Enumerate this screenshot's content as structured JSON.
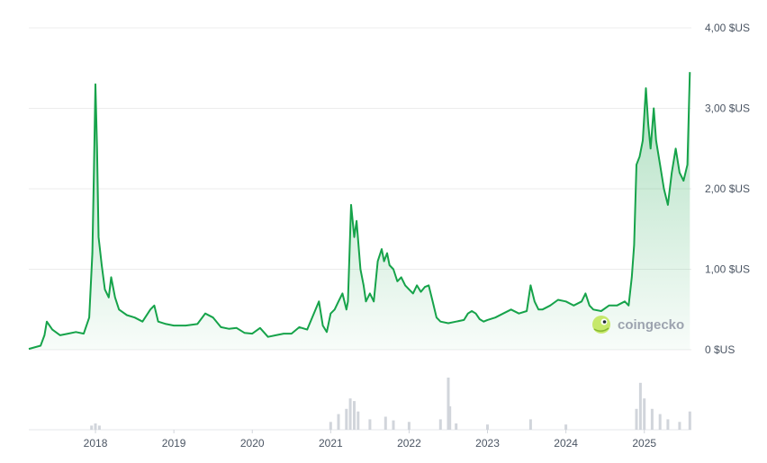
{
  "chart_data": {
    "type": "area",
    "ylim": [
      0,
      4
    ],
    "y_ticks": [
      {
        "value": 0,
        "label": "0 $US"
      },
      {
        "value": 1,
        "label": "1,00 $US"
      },
      {
        "value": 2,
        "label": "2,00 $US"
      },
      {
        "value": 3,
        "label": "3,00 $US"
      },
      {
        "value": 4,
        "label": "4,00 $US"
      }
    ],
    "x_ticks": [
      "2018",
      "2019",
      "2020",
      "2021",
      "2022",
      "2023",
      "2024",
      "2025"
    ],
    "x_range": [
      2017.15,
      2025.6
    ],
    "grid": true,
    "line_color": "#16a34a",
    "fill_color": "#16a34a",
    "volume_color": "#d1d5db",
    "series": [
      {
        "points": [
          [
            2017.15,
            0.01
          ],
          [
            2017.3,
            0.05
          ],
          [
            2017.35,
            0.18
          ],
          [
            2017.38,
            0.35
          ],
          [
            2017.45,
            0.25
          ],
          [
            2017.55,
            0.18
          ],
          [
            2017.65,
            0.2
          ],
          [
            2017.75,
            0.22
          ],
          [
            2017.85,
            0.2
          ],
          [
            2017.92,
            0.4
          ],
          [
            2017.96,
            1.2
          ],
          [
            2017.98,
            2.2
          ],
          [
            2018.0,
            3.3
          ],
          [
            2018.02,
            2.5
          ],
          [
            2018.04,
            1.4
          ],
          [
            2018.08,
            1.05
          ],
          [
            2018.12,
            0.75
          ],
          [
            2018.17,
            0.65
          ],
          [
            2018.2,
            0.9
          ],
          [
            2018.25,
            0.65
          ],
          [
            2018.3,
            0.5
          ],
          [
            2018.4,
            0.43
          ],
          [
            2018.5,
            0.4
          ],
          [
            2018.6,
            0.35
          ],
          [
            2018.7,
            0.5
          ],
          [
            2018.75,
            0.55
          ],
          [
            2018.8,
            0.35
          ],
          [
            2018.9,
            0.32
          ],
          [
            2019.0,
            0.3
          ],
          [
            2019.15,
            0.3
          ],
          [
            2019.3,
            0.32
          ],
          [
            2019.4,
            0.45
          ],
          [
            2019.5,
            0.4
          ],
          [
            2019.6,
            0.28
          ],
          [
            2019.7,
            0.26
          ],
          [
            2019.8,
            0.27
          ],
          [
            2019.9,
            0.21
          ],
          [
            2020.0,
            0.2
          ],
          [
            2020.1,
            0.27
          ],
          [
            2020.2,
            0.16
          ],
          [
            2020.3,
            0.18
          ],
          [
            2020.4,
            0.2
          ],
          [
            2020.5,
            0.2
          ],
          [
            2020.6,
            0.28
          ],
          [
            2020.7,
            0.25
          ],
          [
            2020.85,
            0.6
          ],
          [
            2020.9,
            0.3
          ],
          [
            2020.95,
            0.22
          ],
          [
            2021.0,
            0.45
          ],
          [
            2021.05,
            0.5
          ],
          [
            2021.1,
            0.6
          ],
          [
            2021.15,
            0.7
          ],
          [
            2021.2,
            0.5
          ],
          [
            2021.22,
            0.6
          ],
          [
            2021.26,
            1.8
          ],
          [
            2021.3,
            1.4
          ],
          [
            2021.33,
            1.6
          ],
          [
            2021.38,
            1.0
          ],
          [
            2021.42,
            0.8
          ],
          [
            2021.45,
            0.6
          ],
          [
            2021.5,
            0.7
          ],
          [
            2021.55,
            0.6
          ],
          [
            2021.6,
            1.1
          ],
          [
            2021.65,
            1.25
          ],
          [
            2021.68,
            1.1
          ],
          [
            2021.72,
            1.2
          ],
          [
            2021.75,
            1.05
          ],
          [
            2021.8,
            1.0
          ],
          [
            2021.85,
            0.85
          ],
          [
            2021.9,
            0.9
          ],
          [
            2021.95,
            0.8
          ],
          [
            2022.0,
            0.75
          ],
          [
            2022.05,
            0.7
          ],
          [
            2022.1,
            0.8
          ],
          [
            2022.15,
            0.72
          ],
          [
            2022.2,
            0.78
          ],
          [
            2022.25,
            0.8
          ],
          [
            2022.3,
            0.6
          ],
          [
            2022.35,
            0.4
          ],
          [
            2022.4,
            0.35
          ],
          [
            2022.5,
            0.33
          ],
          [
            2022.6,
            0.35
          ],
          [
            2022.7,
            0.37
          ],
          [
            2022.75,
            0.45
          ],
          [
            2022.8,
            0.48
          ],
          [
            2022.85,
            0.45
          ],
          [
            2022.9,
            0.38
          ],
          [
            2022.95,
            0.35
          ],
          [
            2023.0,
            0.37
          ],
          [
            2023.1,
            0.4
          ],
          [
            2023.2,
            0.45
          ],
          [
            2023.3,
            0.5
          ],
          [
            2023.4,
            0.45
          ],
          [
            2023.5,
            0.48
          ],
          [
            2023.55,
            0.8
          ],
          [
            2023.6,
            0.6
          ],
          [
            2023.65,
            0.5
          ],
          [
            2023.7,
            0.5
          ],
          [
            2023.8,
            0.55
          ],
          [
            2023.9,
            0.62
          ],
          [
            2024.0,
            0.6
          ],
          [
            2024.1,
            0.55
          ],
          [
            2024.2,
            0.6
          ],
          [
            2024.25,
            0.7
          ],
          [
            2024.3,
            0.55
          ],
          [
            2024.35,
            0.5
          ],
          [
            2024.45,
            0.48
          ],
          [
            2024.55,
            0.55
          ],
          [
            2024.65,
            0.55
          ],
          [
            2024.75,
            0.6
          ],
          [
            2024.8,
            0.55
          ],
          [
            2024.84,
            0.9
          ],
          [
            2024.87,
            1.3
          ],
          [
            2024.9,
            2.3
          ],
          [
            2024.94,
            2.4
          ],
          [
            2024.98,
            2.6
          ],
          [
            2025.02,
            3.25
          ],
          [
            2025.05,
            2.8
          ],
          [
            2025.08,
            2.5
          ],
          [
            2025.12,
            3.0
          ],
          [
            2025.15,
            2.6
          ],
          [
            2025.2,
            2.3
          ],
          [
            2025.25,
            2.0
          ],
          [
            2025.3,
            1.8
          ],
          [
            2025.35,
            2.2
          ],
          [
            2025.4,
            2.5
          ],
          [
            2025.45,
            2.2
          ],
          [
            2025.5,
            2.1
          ],
          [
            2025.55,
            2.3
          ],
          [
            2025.58,
            3.45
          ]
        ]
      }
    ],
    "volume": [
      [
        2017.95,
        0.08
      ],
      [
        2018.0,
        0.12
      ],
      [
        2018.05,
        0.08
      ],
      [
        2021.0,
        0.15
      ],
      [
        2021.1,
        0.3
      ],
      [
        2021.2,
        0.4
      ],
      [
        2021.25,
        0.6
      ],
      [
        2021.3,
        0.55
      ],
      [
        2021.35,
        0.35
      ],
      [
        2021.5,
        0.2
      ],
      [
        2021.7,
        0.25
      ],
      [
        2021.8,
        0.18
      ],
      [
        2022.0,
        0.15
      ],
      [
        2022.4,
        0.2
      ],
      [
        2022.5,
        1.0
      ],
      [
        2022.52,
        0.45
      ],
      [
        2022.6,
        0.12
      ],
      [
        2023.0,
        0.1
      ],
      [
        2023.55,
        0.2
      ],
      [
        2024.0,
        0.1
      ],
      [
        2024.9,
        0.4
      ],
      [
        2024.95,
        0.9
      ],
      [
        2025.0,
        0.6
      ],
      [
        2025.1,
        0.4
      ],
      [
        2025.2,
        0.3
      ],
      [
        2025.3,
        0.2
      ],
      [
        2025.45,
        0.15
      ],
      [
        2025.58,
        0.35
      ]
    ]
  },
  "watermark": {
    "text": "coingecko",
    "icon": "coingecko-logo-icon"
  }
}
